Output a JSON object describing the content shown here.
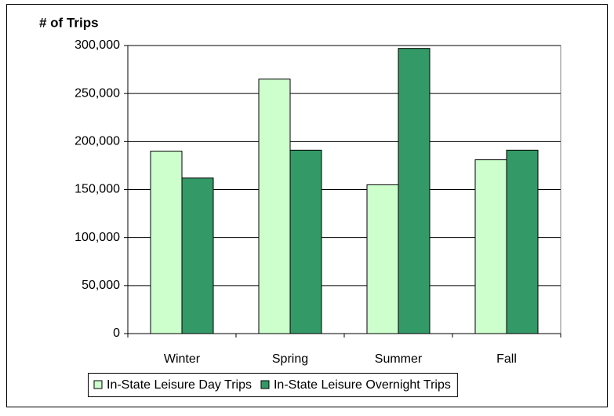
{
  "chart_data": {
    "type": "bar",
    "y_label": "# of Trips",
    "categories": [
      "Winter",
      "Spring",
      "Summer",
      "Fall"
    ],
    "series": [
      {
        "name": "In-State Leisure Day Trips",
        "color": "#ccffcc",
        "values": [
          190000,
          265000,
          155000,
          181000
        ]
      },
      {
        "name": "In-State Leisure Overnight Trips",
        "color": "#339966",
        "values": [
          162000,
          191000,
          297000,
          191000
        ]
      }
    ],
    "ylim": [
      0,
      300000
    ],
    "yticks": [
      0,
      {
        "value": 50000,
        "label": "50,000"
      },
      {
        "value": 100000,
        "label": "100,000"
      },
      {
        "value": 150000,
        "label": "150,000"
      },
      {
        "value": 200000,
        "label": "200,000"
      },
      {
        "value": 250000,
        "label": "250,000"
      },
      {
        "value": 300000,
        "label": "300,000"
      }
    ],
    "grid": true,
    "legend": "bottom"
  }
}
